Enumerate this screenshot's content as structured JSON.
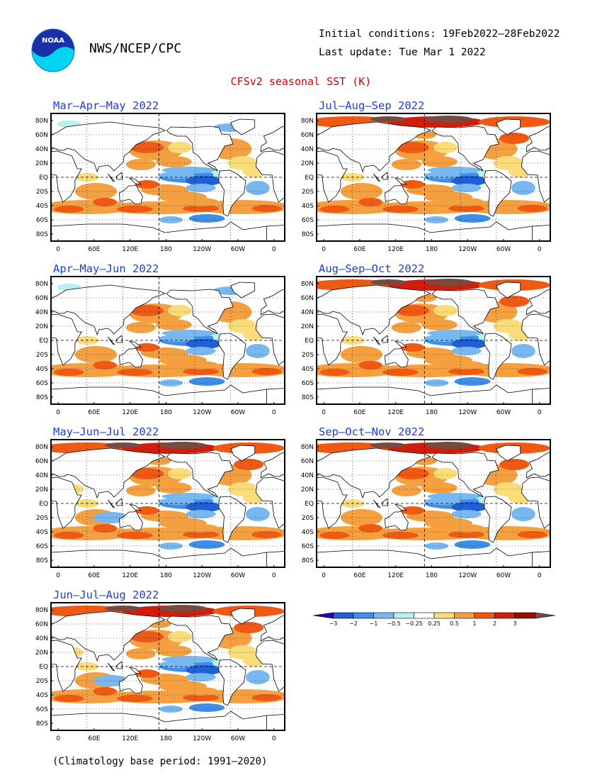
{
  "header": {
    "org": "NWS/NCEP/CPC",
    "initial_conditions": "Initial conditions: 19Feb2022–28Feb2022",
    "last_update": "Last update: Tue Mar 1 2022",
    "title": "CFSv2 seasonal SST (K)",
    "logo_text": "NOAA"
  },
  "panels": [
    {
      "title": "Mar–Apr–May 2022"
    },
    {
      "title": "Jul–Aug–Sep 2022"
    },
    {
      "title": "Apr–May–Jun 2022"
    },
    {
      "title": "Aug–Sep–Oct 2022"
    },
    {
      "title": "May–Jun–Jul 2022"
    },
    {
      "title": "Sep–Oct–Nov 2022"
    },
    {
      "title": "Jun–Jul–Aug 2022"
    }
  ],
  "lat_labels": [
    "80N",
    "60N",
    "40N",
    "20N",
    "EQ",
    "20S",
    "40S",
    "60S",
    "80S"
  ],
  "lon_labels": [
    "0",
    "60E",
    "120E",
    "180",
    "120W",
    "60W",
    "0"
  ],
  "colorbar": {
    "labels": [
      "−3",
      "−2",
      "−1",
      "−0.5",
      "−0.25",
      "0.25",
      "0.5",
      "1",
      "2",
      "3"
    ],
    "colors": [
      "#2a00b8",
      "#1f5fd8",
      "#3f8ee8",
      "#78b8f0",
      "#b8f0f0",
      "#ffffff",
      "#fadc78",
      "#f5a040",
      "#ee5a14",
      "#d01e0a",
      "#9a0a0a",
      "#7a4a40"
    ]
  },
  "footer": "(Climatology base period: 1991–2020)"
}
